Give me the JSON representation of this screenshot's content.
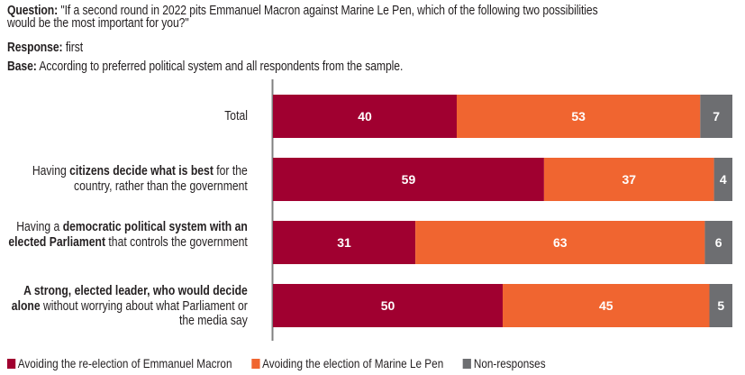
{
  "header": {
    "question_label": "Question:",
    "question_text_line1": " \"If a second round in 2022 pits Emmanuel Macron against Marine Le Pen, which of the following two possibilities",
    "question_text_line2": "would be the most important for you?\"",
    "response_label": "Response:",
    "response_text": " first",
    "base_label": "Base:",
    "base_text": " According to preferred political system and all respondents from the sample."
  },
  "colors": {
    "macron": "#A00030",
    "lepen": "#F06530",
    "nonresp": "#6D6E71",
    "axis": "#808080"
  },
  "chart_data": {
    "type": "bar",
    "orientation": "horizontal",
    "stacked": true,
    "title": "",
    "xlabel": "",
    "ylabel": "",
    "xlim": [
      0,
      100
    ],
    "grid": false,
    "legend_position": "bottom-left",
    "categories": [
      {
        "parts": [
          {
            "t": "Total",
            "b": false
          }
        ]
      },
      {
        "parts": [
          {
            "t": "Having ",
            "b": false
          },
          {
            "t": "citizens decide what is best",
            "b": true
          },
          {
            "t": " for the country, rather than the government",
            "b": false
          }
        ]
      },
      {
        "parts": [
          {
            "t": "Having a ",
            "b": false
          },
          {
            "t": "democratic political system with an elected Parliament",
            "b": true
          },
          {
            "t": " that controls the government",
            "b": false
          }
        ]
      },
      {
        "parts": [
          {
            "t": "A strong, elected leader, who would decide alone",
            "b": true
          },
          {
            "t": " without worrying about what Parliament or the media say",
            "b": false
          }
        ]
      }
    ],
    "category_labels": [
      "Total",
      "Having citizens decide what is best for the country, rather than the government",
      "Having a democratic political system with an elected Parliament that controls the government",
      "A strong, elected leader, who would decide alone without worrying about what Parliament or the media say"
    ],
    "series": [
      {
        "name": "Avoiding the re-election of Emmanuel Macron",
        "color_key": "macron",
        "values": [
          40,
          59,
          31,
          50
        ]
      },
      {
        "name": "Avoiding the election of Marine Le Pen",
        "color_key": "lepen",
        "values": [
          53,
          37,
          63,
          45
        ]
      },
      {
        "name": "Non-responses",
        "color_key": "nonresp",
        "values": [
          7,
          4,
          6,
          5
        ]
      }
    ]
  }
}
